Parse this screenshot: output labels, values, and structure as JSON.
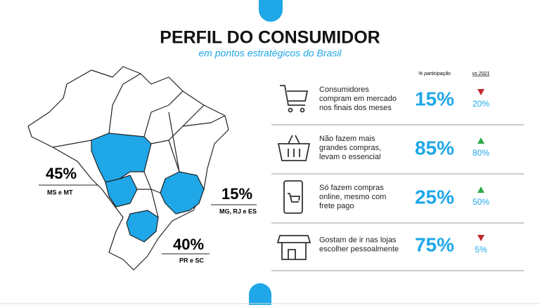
{
  "header": {
    "title": "PERFIL DO CONSUMIDOR",
    "subtitle": "em pontos estratégicos do Brasil"
  },
  "map": {
    "regions": [
      {
        "percent": "45%",
        "label": "MS e MT"
      },
      {
        "percent": "15%",
        "label": "MG, RJ e ES"
      },
      {
        "percent": "40%",
        "label": "PR e SC"
      }
    ]
  },
  "table": {
    "headers": [
      "% participação",
      "vs 2021"
    ],
    "rows": [
      {
        "text": [
          "Consumidores",
          "compram em mercado",
          "nos finais dos meses"
        ],
        "share": "15%",
        "change": "20%",
        "trend": "down"
      },
      {
        "text": [
          "Não fazem mais",
          "grandes compras,",
          "levam o essencial"
        ],
        "share": "85%",
        "change": "80%",
        "trend": "up"
      },
      {
        "text": [
          "Só fazem compras",
          "online, mesmo com",
          "frete pago"
        ],
        "share": "25%",
        "change": "50%",
        "trend": "up"
      },
      {
        "text": [
          "Gostam de ir nas lojas",
          "escolher pessoalmente"
        ],
        "share": "75%",
        "change": "5%",
        "trend": "down"
      }
    ]
  }
}
